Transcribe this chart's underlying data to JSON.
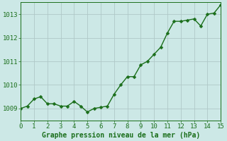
{
  "x": [
    0,
    0.5,
    1,
    1.5,
    2,
    2.5,
    3,
    3.5,
    4,
    4.5,
    5,
    5.5,
    6,
    6.5,
    7,
    7.5,
    8,
    8.5,
    9,
    9.5,
    10,
    10.5,
    11,
    11.5,
    12,
    12.5,
    13,
    13.5,
    14,
    14.5,
    15
  ],
  "y": [
    1009.0,
    1009.1,
    1009.4,
    1009.5,
    1009.2,
    1009.2,
    1009.1,
    1009.1,
    1009.3,
    1009.1,
    1008.85,
    1009.0,
    1009.05,
    1009.1,
    1009.6,
    1010.0,
    1010.35,
    1010.35,
    1010.85,
    1011.0,
    1011.3,
    1011.6,
    1012.2,
    1012.7,
    1012.7,
    1012.75,
    1012.8,
    1012.5,
    1013.0,
    1013.05,
    1013.4
  ],
  "line_color": "#1a6e1a",
  "marker_color": "#1a6e1a",
  "bg_color": "#cce8e6",
  "grid_color": "#b0c8c8",
  "title": "Graphe pression niveau de la mer (hPa)",
  "xlim": [
    0,
    15
  ],
  "ylim": [
    1008.5,
    1013.5
  ],
  "yticks": [
    1009,
    1010,
    1011,
    1012,
    1013
  ],
  "xticks": [
    0,
    1,
    2,
    3,
    4,
    5,
    6,
    7,
    8,
    9,
    10,
    11,
    12,
    13,
    14,
    15
  ],
  "title_fontsize": 7.0,
  "tick_fontsize": 6.5,
  "line_width": 1.0,
  "marker_size": 2.5
}
